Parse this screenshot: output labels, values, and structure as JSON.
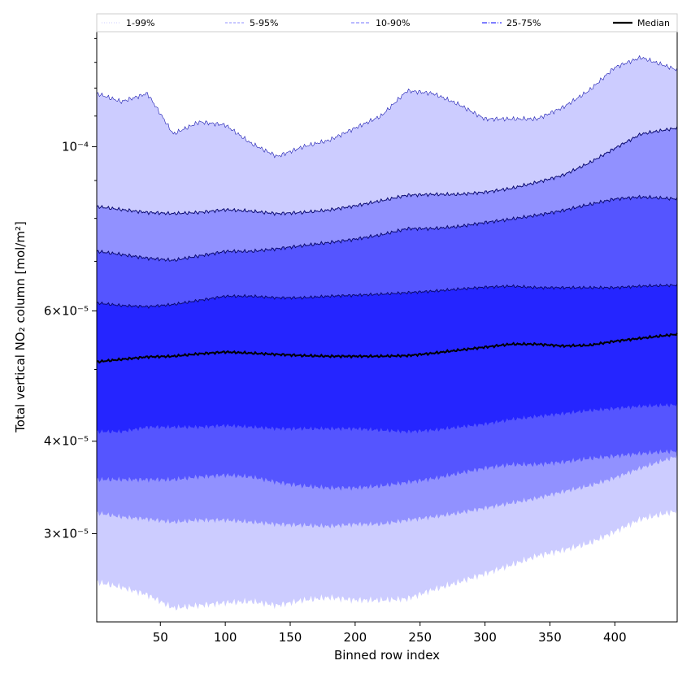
{
  "chart_data": {
    "type": "area",
    "xlabel": "Binned row index",
    "ylabel": "Total vertical NO₂ column [mol/m²]",
    "yscale": "log",
    "xlim": [
      1,
      448
    ],
    "ylim": [
      2.28e-05,
      0.000143
    ],
    "x_ticks": [
      50,
      100,
      150,
      200,
      250,
      300,
      350,
      400
    ],
    "y_ticks": [
      {
        "value": 0.0001,
        "label": "10⁻⁴"
      },
      {
        "value": 6e-05,
        "label": "6×10⁻⁵"
      },
      {
        "value": 4e-05,
        "label": "4×10⁻⁵"
      },
      {
        "value": 3e-05,
        "label": "3×10⁻⁵"
      }
    ],
    "legend_position": "top (above plot)",
    "colors": {
      "band_1_99": "#ccccff",
      "band_5_95": "#9191ff",
      "band_10_90": "#5555ff",
      "band_25_75": "#2525ff",
      "median": "#000000",
      "edge": "#0a0a70"
    },
    "x": [
      1,
      20,
      40,
      60,
      80,
      100,
      120,
      140,
      160,
      180,
      200,
      220,
      240,
      260,
      280,
      300,
      320,
      340,
      360,
      380,
      400,
      420,
      448
    ],
    "series": [
      {
        "name": "1-99%",
        "style": "dotted",
        "upper": [
          0.000118,
          0.000115,
          0.000118,
          0.000104,
          0.000108,
          0.000107,
          0.000101,
          9.7e-05,
          0.0001,
          0.000102,
          0.000106,
          0.00011,
          0.000119,
          0.000118,
          0.000114,
          0.000109,
          0.000109,
          0.000109,
          0.000113,
          0.000119,
          0.000128,
          0.000132,
          0.000127
        ],
        "lower": [
          2.58e-05,
          2.54e-05,
          2.48e-05,
          2.38e-05,
          2.4e-05,
          2.42e-05,
          2.43e-05,
          2.4e-05,
          2.44e-05,
          2.46e-05,
          2.44e-05,
          2.44e-05,
          2.45e-05,
          2.52e-05,
          2.58e-05,
          2.65e-05,
          2.72e-05,
          2.8e-05,
          2.85e-05,
          2.91e-05,
          3.02e-05,
          3.14e-05,
          3.22e-05
        ]
      },
      {
        "name": "5-95%",
        "style": "dashed",
        "upper": [
          8.3e-05,
          8.22e-05,
          8.15e-05,
          8.12e-05,
          8.15e-05,
          8.22e-05,
          8.18e-05,
          8.12e-05,
          8.15e-05,
          8.21e-05,
          8.32e-05,
          8.45e-05,
          8.6e-05,
          8.62e-05,
          8.62e-05,
          8.68e-05,
          8.78e-05,
          8.95e-05,
          9.15e-05,
          9.5e-05,
          9.95e-05,
          0.000104,
          0.000106
        ],
        "lower": [
          3.2e-05,
          3.16e-05,
          3.14e-05,
          3.11e-05,
          3.13e-05,
          3.13e-05,
          3.11e-05,
          3.09e-05,
          3.08e-05,
          3.07e-05,
          3.09e-05,
          3.09e-05,
          3.13e-05,
          3.16e-05,
          3.2e-05,
          3.25e-05,
          3.3e-05,
          3.35e-05,
          3.42e-05,
          3.48e-05,
          3.57e-05,
          3.68e-05,
          3.82e-05
        ]
      },
      {
        "name": "10-90%",
        "style": "dashed",
        "upper": [
          7.22e-05,
          7.15e-05,
          7.07e-05,
          7.02e-05,
          7.12e-05,
          7.22e-05,
          7.22e-05,
          7.28e-05,
          7.35e-05,
          7.42e-05,
          7.5e-05,
          7.6e-05,
          7.75e-05,
          7.75e-05,
          7.8e-05,
          7.9e-05,
          7.98e-05,
          8.08e-05,
          8.2e-05,
          8.35e-05,
          8.5e-05,
          8.55e-05,
          8.5e-05
        ],
        "lower": [
          3.55e-05,
          3.55e-05,
          3.55e-05,
          3.55e-05,
          3.58e-05,
          3.6e-05,
          3.58e-05,
          3.52e-05,
          3.48e-05,
          3.46e-05,
          3.46e-05,
          3.48e-05,
          3.52e-05,
          3.56e-05,
          3.62e-05,
          3.68e-05,
          3.72e-05,
          3.72e-05,
          3.75e-05,
          3.79e-05,
          3.82e-05,
          3.85e-05,
          3.88e-05
        ]
      },
      {
        "name": "25-75%",
        "style": "dashdot",
        "upper": [
          6.15e-05,
          6.1e-05,
          6.08e-05,
          6.12e-05,
          6.2e-05,
          6.28e-05,
          6.28e-05,
          6.25e-05,
          6.25e-05,
          6.28e-05,
          6.3e-05,
          6.32e-05,
          6.35e-05,
          6.38e-05,
          6.42e-05,
          6.46e-05,
          6.48e-05,
          6.45e-05,
          6.45e-05,
          6.45e-05,
          6.45e-05,
          6.48e-05,
          6.5e-05
        ],
        "lower": [
          4.12e-05,
          4.12e-05,
          4.18e-05,
          4.18e-05,
          4.18e-05,
          4.2e-05,
          4.18e-05,
          4.16e-05,
          4.16e-05,
          4.16e-05,
          4.16e-05,
          4.14e-05,
          4.12e-05,
          4.14e-05,
          4.18e-05,
          4.22e-05,
          4.28e-05,
          4.32e-05,
          4.36e-05,
          4.4e-05,
          4.43e-05,
          4.46e-05,
          4.48e-05
        ]
      },
      {
        "name": "Median",
        "style": "solid",
        "values": [
          5.12e-05,
          5.16e-05,
          5.2e-05,
          5.21e-05,
          5.25e-05,
          5.28e-05,
          5.26e-05,
          5.24e-05,
          5.22e-05,
          5.21e-05,
          5.21e-05,
          5.21e-05,
          5.22e-05,
          5.26e-05,
          5.31e-05,
          5.36e-05,
          5.41e-05,
          5.41e-05,
          5.38e-05,
          5.39e-05,
          5.46e-05,
          5.51e-05,
          5.58e-05
        ]
      }
    ]
  }
}
